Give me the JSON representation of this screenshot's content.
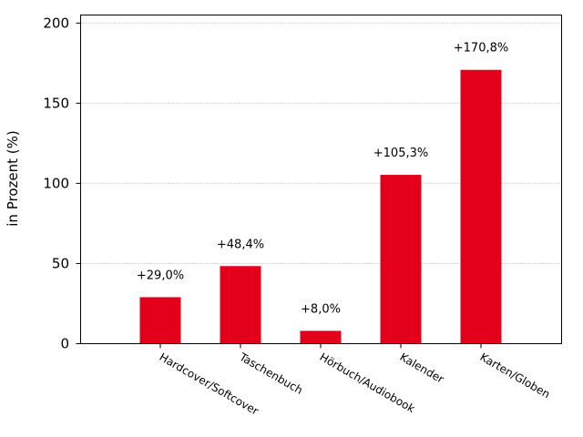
{
  "chart_data": {
    "type": "bar",
    "title": "",
    "xlabel": "",
    "ylabel": "in Prozent (%)",
    "ylim": [
      0,
      205
    ],
    "yticks": [
      0,
      50,
      100,
      150,
      200
    ],
    "grid": true,
    "bar_color": "#e2001a",
    "categories": [
      "Hardcover/Softcover",
      "Taschenbuch",
      "Hörbuch/Audiobook",
      "Kalender",
      "Karten/Globen"
    ],
    "values": [
      29.0,
      48.4,
      8.0,
      105.3,
      170.8
    ],
    "data_labels": [
      "+29,0%",
      "+48,4%",
      "+8,0%",
      "+105,3%",
      "+170,8%"
    ]
  }
}
